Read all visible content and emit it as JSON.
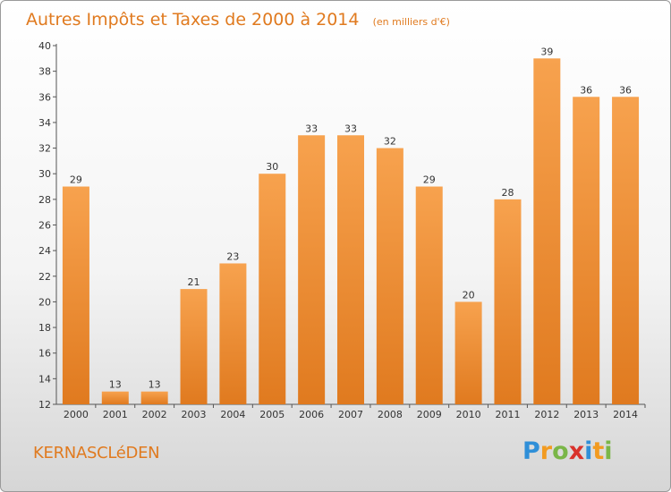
{
  "chart_data": {
    "type": "bar",
    "title": "Autres Impôts et Taxes de 2000 à 2014",
    "subtitle": "(en milliers d'€)",
    "categories": [
      "2000",
      "2001",
      "2002",
      "2003",
      "2004",
      "2005",
      "2006",
      "2007",
      "2008",
      "2009",
      "2010",
      "2011",
      "2012",
      "2013",
      "2014"
    ],
    "values": [
      29,
      13,
      13,
      21,
      23,
      30,
      33,
      33,
      32,
      29,
      20,
      28,
      39,
      36,
      36
    ],
    "ylim": [
      12,
      40
    ],
    "yticks": [
      12,
      14,
      16,
      18,
      20,
      22,
      24,
      26,
      28,
      30,
      32,
      34,
      36,
      38,
      40
    ],
    "grid": false,
    "colors": {
      "bar_light": "#f7a24e",
      "bar_dark": "#e07a1f",
      "title": "#e07a1f"
    }
  },
  "commune": "KERNASCLéDEN",
  "logo": {
    "letters": [
      "P",
      "r",
      "o",
      "x",
      "i",
      "t",
      "i"
    ],
    "colors": [
      "#2f8fd8",
      "#f29b21",
      "#7ab648",
      "#d9322b",
      "#2f8fd8",
      "#f29b21",
      "#7ab648"
    ]
  }
}
